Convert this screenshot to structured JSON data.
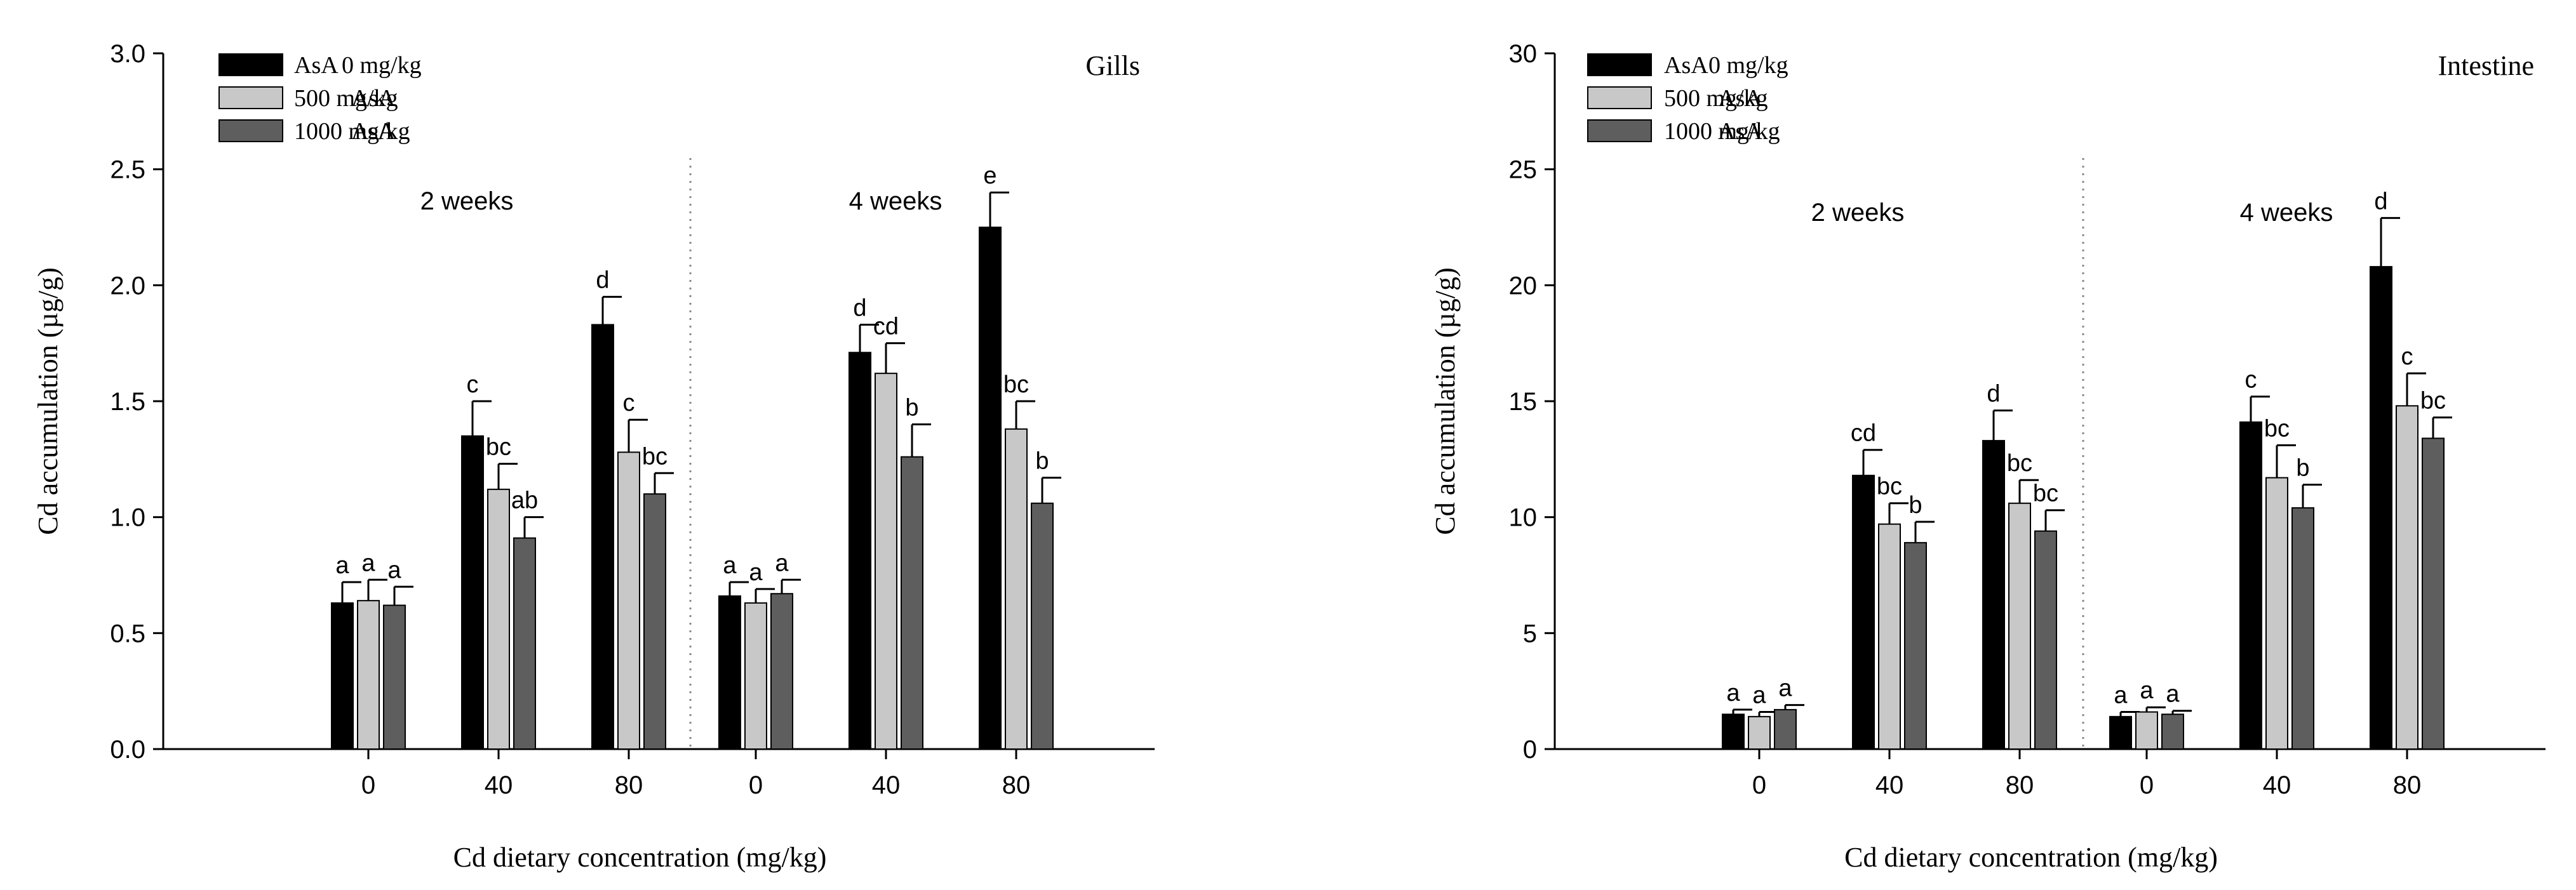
{
  "chart_data": [
    {
      "type": "bar",
      "title": "Gills",
      "xlabel": "Cd dietary concentration (mg/kg)",
      "ylabel": "Cd accumulation (µg/g)",
      "ylim": [
        0,
        3.0
      ],
      "yticks": [
        "0.0",
        "0.5",
        "1.0",
        "1.5",
        "2.0",
        "2.5",
        "3.0"
      ],
      "grid": false,
      "legend_position": "top-left",
      "groups": [
        {
          "label": "2 weeks",
          "categories": [
            "0",
            "40",
            "80"
          ]
        },
        {
          "label": "4 weeks",
          "categories": [
            "0",
            "40",
            "80"
          ]
        }
      ],
      "series": [
        {
          "name": "AsA",
          "dose": "0 mg/kg",
          "color": "#000000",
          "values": [
            0.63,
            1.35,
            1.83,
            0.66,
            1.71,
            2.25
          ],
          "errors": [
            0.09,
            0.15,
            0.12,
            0.06,
            0.12,
            0.15
          ],
          "letters": [
            "a",
            "c",
            "d",
            "a",
            "d",
            "e"
          ]
        },
        {
          "name": "AsA",
          "dose": "500 mg/kg",
          "color": "#c8c8c8",
          "values": [
            0.64,
            1.12,
            1.28,
            0.63,
            1.62,
            1.38
          ],
          "errors": [
            0.09,
            0.11,
            0.14,
            0.06,
            0.13,
            0.12
          ],
          "letters": [
            "a",
            "bc",
            "c",
            "a",
            "cd",
            "bc"
          ]
        },
        {
          "name": "AsA",
          "dose": "1000 mg/kg",
          "color": "#5e5e5e",
          "values": [
            0.62,
            0.91,
            1.1,
            0.67,
            1.26,
            1.06
          ],
          "errors": [
            0.08,
            0.09,
            0.09,
            0.06,
            0.14,
            0.11
          ],
          "letters": [
            "a",
            "ab",
            "bc",
            "a",
            "b",
            "b"
          ]
        }
      ]
    },
    {
      "type": "bar",
      "title": "Intestine",
      "xlabel": "Cd dietary concentration (mg/kg)",
      "ylabel": "Cd accumulation (µg/g)",
      "ylim": [
        0,
        30
      ],
      "yticks": [
        "0",
        "5",
        "10",
        "15",
        "20",
        "25",
        "30"
      ],
      "grid": false,
      "legend_position": "top-left",
      "groups": [
        {
          "label": "2 weeks",
          "categories": [
            "0",
            "40",
            "80"
          ]
        },
        {
          "label": "4 weeks",
          "categories": [
            "0",
            "40",
            "80"
          ]
        }
      ],
      "series": [
        {
          "name": "AsA",
          "dose": "0 mg/kg",
          "color": "#000000",
          "values": [
            1.5,
            11.8,
            13.3,
            1.4,
            14.1,
            20.8
          ],
          "errors": [
            0.2,
            1.1,
            1.3,
            0.2,
            1.1,
            2.1
          ],
          "letters": [
            "a",
            "cd",
            "d",
            "a",
            "c",
            "d"
          ]
        },
        {
          "name": "AsA",
          "dose": "500 mg/kg",
          "color": "#c8c8c8",
          "values": [
            1.4,
            9.7,
            10.6,
            1.6,
            11.7,
            14.8
          ],
          "errors": [
            0.2,
            0.9,
            1.0,
            0.2,
            1.4,
            1.4
          ],
          "letters": [
            "a",
            "bc",
            "bc",
            "a",
            "bc",
            "c"
          ]
        },
        {
          "name": "AsA",
          "dose": "1000 mg/kg",
          "color": "#5e5e5e",
          "values": [
            1.7,
            8.9,
            9.4,
            1.5,
            10.4,
            13.4
          ],
          "errors": [
            0.2,
            0.9,
            0.9,
            0.15,
            1.0,
            0.9
          ],
          "letters": [
            "a",
            "b",
            "bc",
            "a",
            "b",
            "bc"
          ]
        }
      ]
    }
  ]
}
